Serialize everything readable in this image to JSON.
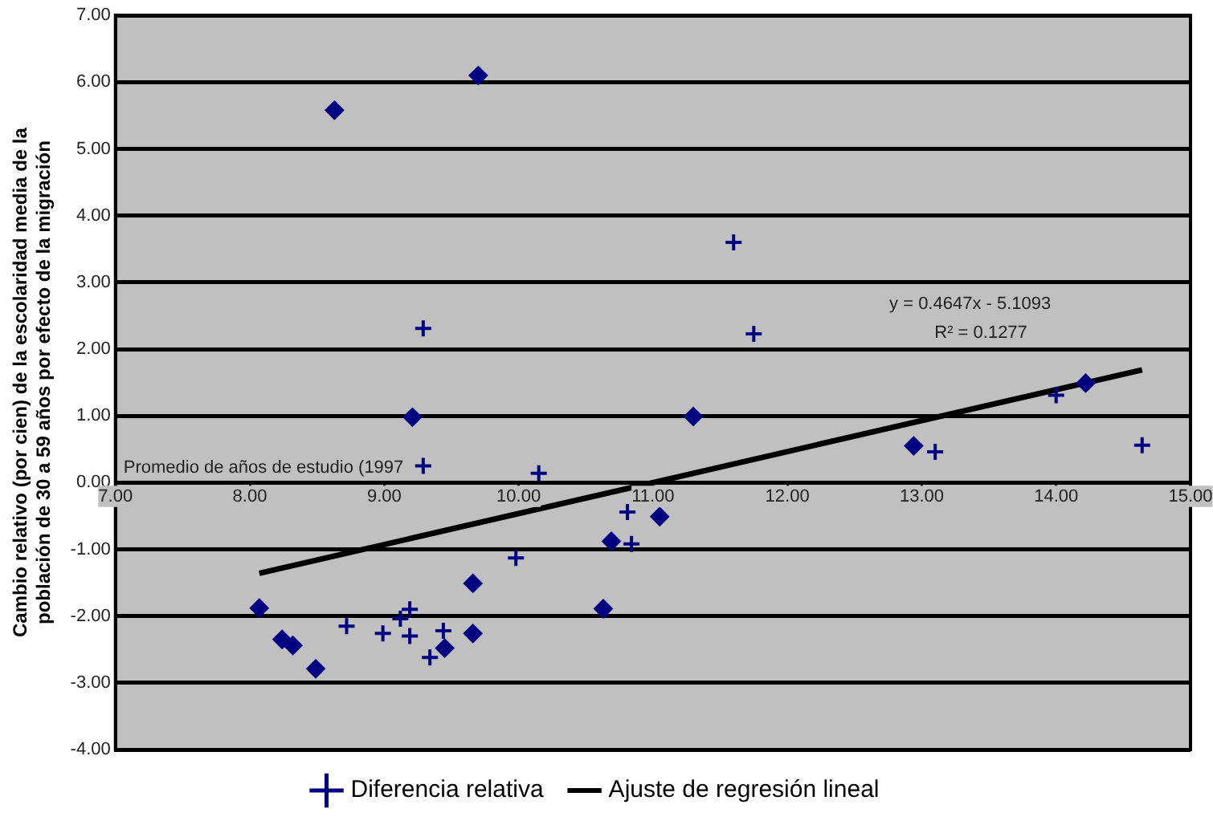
{
  "chart_data": {
    "type": "scatter",
    "xlabel": "Promedio de años de estudio (1997",
    "ylabel": [
      "Cambio relativo (por cien) de la escolaridad media de la",
      "población de 30 a 59 años por efecto de la migración"
    ],
    "series": [
      {
        "name": "Diferencia relativa",
        "color": "#000080",
        "marker": "cross",
        "x": [
          9.29,
          9.29,
          10.15,
          9.98,
          8.72,
          8.99,
          9.12,
          9.19,
          9.19,
          9.34,
          9.44,
          11.6,
          11.75,
          10.81,
          10.84,
          13.1,
          14.0,
          14.64
        ],
        "values": [
          2.31,
          0.25,
          0.14,
          -1.13,
          -2.15,
          -2.26,
          -2.04,
          -1.9,
          -2.3,
          -2.62,
          -2.22,
          3.6,
          2.23,
          -0.44,
          -0.92,
          0.46,
          1.31,
          0.56
        ]
      },
      {
        "color": "#000080",
        "marker": "diamond",
        "x": [
          8.63,
          9.7,
          9.21,
          8.07,
          8.24,
          8.32,
          8.49,
          9.45,
          9.66,
          9.66,
          10.63,
          10.69,
          11.05,
          11.3,
          12.94,
          14.22
        ],
        "values": [
          5.58,
          6.1,
          0.98,
          -1.88,
          -2.35,
          -2.44,
          -2.79,
          -2.48,
          -1.51,
          -2.26,
          -1.89,
          -0.88,
          -0.51,
          0.99,
          0.55,
          1.49
        ]
      },
      {
        "name": "Ajuste de regresión lineal",
        "type": "line",
        "color": "#000000",
        "marker": "none",
        "x": [
          8.07,
          14.64
        ],
        "values": [
          -1.36,
          1.69
        ]
      }
    ],
    "annotations": [
      "y = 0.4647x - 5.1093",
      "R² = 0.1277"
    ],
    "xlim": [
      7,
      15
    ],
    "xticks": [
      {
        "value": 7,
        "label": "7.00"
      },
      {
        "value": 8,
        "label": "8.00"
      },
      {
        "value": 9,
        "label": "9.00"
      },
      {
        "value": 10,
        "label": "10.00"
      },
      {
        "value": 11,
        "label": "11.00"
      },
      {
        "value": 12,
        "label": "12.00"
      },
      {
        "value": 13,
        "label": "13.00"
      },
      {
        "value": 14,
        "label": "14.00"
      },
      {
        "value": 15,
        "label": "15.00"
      }
    ],
    "ylim": [
      -4,
      7
    ],
    "yticks": [
      {
        "value": -4,
        "label": "-4.00"
      },
      {
        "value": -3,
        "label": "-3.00"
      },
      {
        "value": -2,
        "label": "-2.00"
      },
      {
        "value": -1,
        "label": "-1.00"
      },
      {
        "value": 0,
        "label": "0.00"
      },
      {
        "value": 1,
        "label": "1.00"
      },
      {
        "value": 2,
        "label": "2.00"
      },
      {
        "value": 3,
        "label": "3.00"
      },
      {
        "value": 4,
        "label": "4.00"
      },
      {
        "value": 5,
        "label": "5.00"
      },
      {
        "value": 6,
        "label": "6.00"
      },
      {
        "value": 7,
        "label": "7.00"
      }
    ],
    "grid": "y",
    "legend": "bottom"
  }
}
